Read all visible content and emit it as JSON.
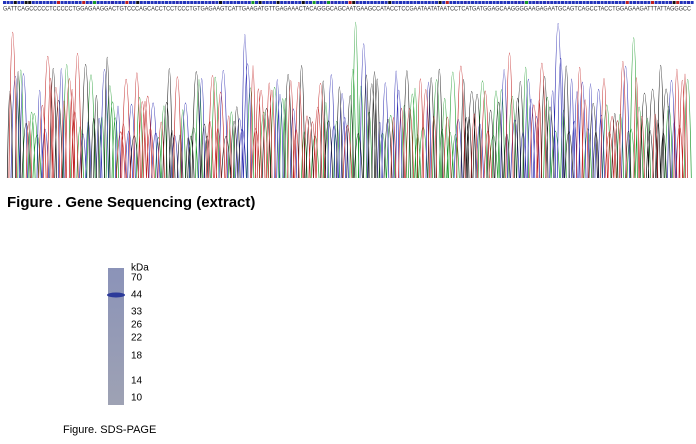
{
  "sequence": {
    "bases": "GATTCAGCCCCCTCCCCCTGGAGAAGGACTGTCCCAGCACCTCCTCCCTGTGAGAAGTCATTGAAGATGTTGAGAAACTACAGGGCAGCAATGAAGCCATACCTCCGAATAATATAATCCTCATGATGGAGCAAGGGGAAGAGAATGCAGTCAGCCTACCTGGAGAAGATTTATTAGGGCC",
    "caption": "Figure . Gene Sequencing (extract)"
  },
  "gel": {
    "unit": "kDa",
    "markers": [
      70,
      44,
      33,
      26,
      22,
      18,
      14,
      10
    ],
    "caption": "Figure. SDS-PAGE"
  }
}
